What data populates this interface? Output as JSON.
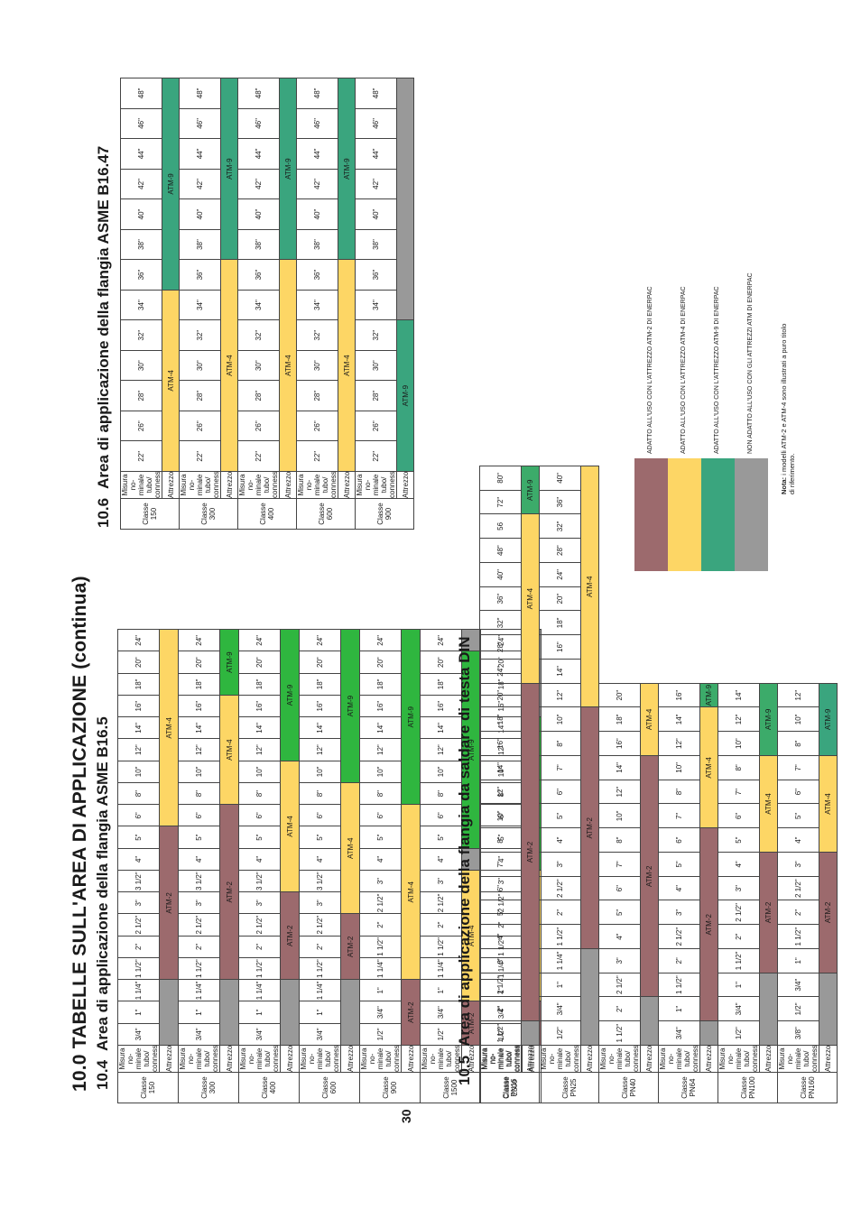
{
  "page": {
    "main_title": "10.0 TABELLE SULL'AREA DI APPLICAZIONE (continua)",
    "page_number": "30"
  },
  "colors": {
    "ATM-2": "#9c6a6d",
    "ATM-4": "#fdd665",
    "ATM-9": "#3cab6a",
    "none": "#999999"
  },
  "row_labels": {
    "class": "Classe",
    "size": "Misura no- minale tubo/ connessione",
    "tool": "Attrezzo"
  },
  "tables": [
    {
      "id": "asme-b16-5",
      "number": "10.4",
      "title": "Area di applicazione della flangia ASME B16.5",
      "classes": [
        {
          "name": "150",
          "sizes": [
            "3/4\"",
            "1\"",
            "1 1/4\"",
            "1 1/2\"",
            "2\"",
            "2 1/2\"",
            "3\"",
            "3 1/2\"",
            "4\"",
            "5\"",
            "6\"",
            "8\"",
            "10\"",
            "12\"",
            "14\"",
            "16\"",
            "18\"",
            "20\"",
            "24\""
          ],
          "tools": [
            {
              "label": "",
              "span": 3,
              "color": "grey"
            },
            {
              "label": "ATM-2",
              "span": 7,
              "color": "red"
            },
            {
              "label": "ATM-4",
              "span": 9,
              "color": "yellow"
            }
          ]
        },
        {
          "name": "300",
          "sizes": [
            "3/4\"",
            "1\"",
            "1 1/4\"",
            "1 1/2\"",
            "2\"",
            "2 1/2\"",
            "3\"",
            "3 1/2\"",
            "4\"",
            "5\"",
            "6\"",
            "8\"",
            "10\"",
            "12\"",
            "14\"",
            "16\"",
            "18\"",
            "20\"",
            "24\""
          ],
          "tools": [
            {
              "label": "",
              "span": 3,
              "color": "grey"
            },
            {
              "label": "ATM-2",
              "span": 8,
              "color": "red"
            },
            {
              "label": "ATM-4",
              "span": 5,
              "color": "yellow"
            },
            {
              "label": "ATM-9",
              "span": 3,
              "color": "bright"
            }
          ]
        },
        {
          "name": "400",
          "sizes": [
            "3/4\"",
            "1\"",
            "1 1/4\"",
            "1 1/2\"",
            "2\"",
            "2 1/2\"",
            "3\"",
            "3 1/2\"",
            "4\"",
            "5\"",
            "6\"",
            "8\"",
            "10\"",
            "12\"",
            "14\"",
            "16\"",
            "18\"",
            "20\"",
            "24\""
          ],
          "tools": [
            {
              "label": "",
              "span": 3,
              "color": "grey"
            },
            {
              "label": "ATM-2",
              "span": 4,
              "color": "red"
            },
            {
              "label": "ATM-4",
              "span": 6,
              "color": "yellow"
            },
            {
              "label": "ATM-9",
              "span": 6,
              "color": "bright"
            }
          ]
        },
        {
          "name": "600",
          "sizes": [
            "3/4\"",
            "1\"",
            "1 1/4\"",
            "1 1/2\"",
            "2\"",
            "2 1/2\"",
            "3\"",
            "3 1/2\"",
            "4\"",
            "5\"",
            "6\"",
            "8\"",
            "10\"",
            "12\"",
            "14\"",
            "16\"",
            "18\"",
            "20\"",
            "24\""
          ],
          "tools": [
            {
              "label": "",
              "span": 3,
              "color": "grey"
            },
            {
              "label": "ATM-2",
              "span": 3,
              "color": "red"
            },
            {
              "label": "ATM-4",
              "span": 6,
              "color": "yellow"
            },
            {
              "label": "ATM-9",
              "span": 7,
              "color": "bright"
            }
          ]
        },
        {
          "name": "900",
          "sizes": [
            "1/2\"",
            "3/4\"",
            "1\"",
            "1 1/4\"",
            "1 1/2\"",
            "2\"",
            "2 1/2\"",
            "3\"",
            "4\"",
            "5\"",
            "6\"",
            "8\"",
            "10\"",
            "12\"",
            "14\"",
            "16\"",
            "18\"",
            "20\"",
            "24\""
          ],
          "tools": [
            {
              "label": "ATM-2",
              "span": 3,
              "color": "red"
            },
            {
              "label": "ATM-4",
              "span": 8,
              "color": "yellow"
            },
            {
              "label": "ATM-9",
              "span": 8,
              "color": "bright"
            }
          ]
        },
        {
          "name": "1500",
          "sizes": [
            "1/2\"",
            "3/4\"",
            "1\"",
            "1 1/4\"",
            "1 1/2\"",
            "2\"",
            "2 1/2\"",
            "3\"",
            "4\"",
            "5\"",
            "6\"",
            "8\"",
            "10\"",
            "12\"",
            "14\"",
            "16\"",
            "18\"",
            "20\"",
            "24\""
          ],
          "tools": [
            {
              "label": "ATM-2",
              "span": 2,
              "color": "red"
            },
            {
              "label": "ATM-4",
              "span": 6,
              "color": "yellow"
            },
            {
              "label": "",
              "span": 1,
              "color": "grey"
            },
            {
              "label": "ATM-9",
              "span": 9,
              "color": "bright"
            },
            {
              "label": "",
              "span": 1,
              "color": "grey"
            }
          ]
        },
        {
          "name": "2500",
          "sizes": [
            "1/2\"",
            "3/4\"",
            "1\"",
            "1 1/4\"",
            "1 1/2\"",
            "2\"",
            "2 1/2\"",
            "3\"",
            "4\"",
            "5\"",
            "6\"",
            "8\"",
            "10\"",
            "12\"",
            "14\"",
            "16\"",
            "18\"",
            "20\"",
            "24\""
          ],
          "tools": [
            {
              "label": "ATM-2",
              "span": 2,
              "color": "red"
            },
            {
              "label": "ATM-4",
              "span": 6,
              "color": "yellow"
            },
            {
              "label": "ATM-9",
              "span": 7,
              "color": "bright"
            },
            {
              "label": "",
              "span": 4,
              "color": "grey"
            }
          ]
        }
      ]
    },
    {
      "id": "din",
      "number": "10.5",
      "title": "Area di applicazione della flangia da saldare di testa DIN",
      "classes": [
        {
          "name": "PN16",
          "sizes": [
            "1 1/2\"",
            "2\"",
            "2 1/2\"",
            "3\"",
            "4\"",
            "5\"",
            "6\"",
            "7\"",
            "8\"",
            "10\"",
            "12\"",
            "14\"",
            "16\"",
            "18\"",
            "20\"",
            "24\"",
            "28\"",
            "32\"",
            "36\"",
            "40\"",
            "48\"",
            "56",
            "72\"",
            "80\""
          ],
          "tools": [
            {
              "label": "",
              "span": 1,
              "color": "grey"
            },
            {
              "label": "ATM-2",
              "span": 14,
              "color": "red"
            },
            {
              "label": "ATM-4",
              "span": 7,
              "color": "yellow"
            },
            {
              "label": "ATM-9",
              "span": 2,
              "color": "green"
            }
          ]
        },
        {
          "name": "PN25",
          "sizes": [
            "1/2\"",
            "3/4\"",
            "1\"",
            "1 1/4\"",
            "1 1/2\"",
            "2\"",
            "2 1/2\"",
            "3\"",
            "4\"",
            "5\"",
            "6\"",
            "7\"",
            "8\"",
            "10\"",
            "12\"",
            "14\"",
            "16\"",
            "18\"",
            "20\"",
            "24\"",
            "28\"",
            "32\"",
            "36\"",
            "40\""
          ],
          "tools": [
            {
              "label": "",
              "span": 4,
              "color": "grey"
            },
            {
              "label": "ATM-2",
              "span": 10,
              "color": "red"
            },
            {
              "label": "ATM-4",
              "span": 10,
              "color": "yellow"
            }
          ]
        },
        {
          "name": "PN40",
          "sizes": [
            "1 1/2\"",
            "2\"",
            "2 1/2\"",
            "3\"",
            "4\"",
            "5\"",
            "6\"",
            "7\"",
            "8\"",
            "10\"",
            "12\"",
            "14\"",
            "16\"",
            "18\"",
            "20\""
          ],
          "tools": [
            {
              "label": "",
              "span": 2,
              "color": "grey"
            },
            {
              "label": "ATM-2",
              "span": 10,
              "color": "red"
            },
            {
              "label": "ATM-4",
              "span": 3,
              "color": "yellow"
            }
          ]
        },
        {
          "name": "PN64",
          "sizes": [
            "3/4\"",
            "1\"",
            "1 1/2\"",
            "2\"",
            "2 1/2\"",
            "3\"",
            "4\"",
            "5\"",
            "6\"",
            "7\"",
            "8\"",
            "10\"",
            "12\"",
            "14\"",
            "16\""
          ],
          "tools": [
            {
              "label": "",
              "span": 1,
              "color": "grey"
            },
            {
              "label": "ATM-2",
              "span": 8,
              "color": "red"
            },
            {
              "label": "ATM-4",
              "span": 5,
              "color": "yellow"
            },
            {
              "label": "ATM-9",
              "span": 1,
              "color": "green"
            }
          ]
        },
        {
          "name": "PN100",
          "sizes": [
            "1/2\"",
            "3/4\"",
            "1\"",
            "1 1/2\"",
            "2\"",
            "2 1/2\"",
            "3\"",
            "4\"",
            "5\"",
            "6\"",
            "7\"",
            "8\"",
            "10\"",
            "12\"",
            "14\""
          ],
          "tools": [
            {
              "label": "",
              "span": 3,
              "color": "grey"
            },
            {
              "label": "ATM-2",
              "span": 5,
              "color": "red"
            },
            {
              "label": "ATM-4",
              "span": 4,
              "color": "yellow"
            },
            {
              "label": "ATM-9",
              "span": 3,
              "color": "green"
            }
          ]
        },
        {
          "name": "PN160",
          "sizes": [
            "3/8\"",
            "1/2\"",
            "3/4\"",
            "1\"",
            "1 1/2\"",
            "2\"",
            "2 1/2\"",
            "3\"",
            "4\"",
            "5\"",
            "6\"",
            "7\"",
            "8\"",
            "10\"",
            "12\""
          ],
          "tools": [
            {
              "label": "",
              "span": 3,
              "color": "grey"
            },
            {
              "label": "ATM-2",
              "span": 5,
              "color": "red"
            },
            {
              "label": "ATM-4",
              "span": 4,
              "color": "yellow"
            },
            {
              "label": "ATM-9",
              "span": 3,
              "color": "teal"
            }
          ]
        }
      ]
    },
    {
      "id": "asme-b16-47",
      "number": "10.6",
      "title": "Area di applicazione della flangia ASME B16.47",
      "classes": [
        {
          "name": "150",
          "sizes": [
            "22\"",
            "26\"",
            "28\"",
            "30\"",
            "32\"",
            "34\"",
            "36\"",
            "38\"",
            "40\"",
            "42\"",
            "44\"",
            "46\"",
            "48\""
          ],
          "tools": [
            {
              "label": "ATM-4",
              "span": 6,
              "color": "yellow"
            },
            {
              "label": "ATM-9",
              "span": 7,
              "color": "teal"
            }
          ]
        },
        {
          "name": "300",
          "sizes": [
            "22\"",
            "26\"",
            "28\"",
            "30\"",
            "32\"",
            "34\"",
            "36\"",
            "38\"",
            "40\"",
            "42\"",
            "44\"",
            "46\"",
            "48\""
          ],
          "tools": [
            {
              "label": "ATM-4",
              "span": 7,
              "color": "yellow"
            },
            {
              "label": "ATM-9",
              "span": 6,
              "color": "teal"
            }
          ]
        },
        {
          "name": "400",
          "sizes": [
            "22\"",
            "26\"",
            "28\"",
            "30\"",
            "32\"",
            "34\"",
            "36\"",
            "38\"",
            "40\"",
            "42\"",
            "44\"",
            "46\"",
            "48\""
          ],
          "tools": [
            {
              "label": "ATM-4",
              "span": 7,
              "color": "yellow"
            },
            {
              "label": "ATM-9",
              "span": 6,
              "color": "teal"
            }
          ]
        },
        {
          "name": "600",
          "sizes": [
            "22\"",
            "26\"",
            "28\"",
            "30\"",
            "32\"",
            "34\"",
            "36\"",
            "38\"",
            "40\"",
            "42\"",
            "44\"",
            "46\"",
            "48\""
          ],
          "tools": [
            {
              "label": "ATM-4",
              "span": 7,
              "color": "yellow"
            },
            {
              "label": "ATM-9",
              "span": 6,
              "color": "teal"
            }
          ]
        },
        {
          "name": "900",
          "sizes": [
            "22\"",
            "26\"",
            "28\"",
            "30\"",
            "32\"",
            "34\"",
            "36\"",
            "38\"",
            "40\"",
            "42\"",
            "44\"",
            "46\"",
            "48\""
          ],
          "tools": [
            {
              "label": "ATM-9",
              "span": 5,
              "color": "teal"
            },
            {
              "label": "",
              "span": 8,
              "color": "grey"
            }
          ]
        }
      ]
    }
  ],
  "legend": [
    {
      "color": "red",
      "text": "ADATTO ALL'USO CON L'ATTREZZO ATM-2 DI ENERPAC"
    },
    {
      "color": "yellow",
      "text": "ADATTO ALL'USO CON L'ATTREZZO ATM-4 DI ENERPAC"
    },
    {
      "color": "teal",
      "text": "ADATTO ALL'USO CON L'ATTREZZO ATM-9 DI ENERPAC"
    },
    {
      "color": "grey",
      "text": "NON ADATTO ALL'USO CON GLI ATTREZZI ATM DI ENERPAC"
    }
  ],
  "note": {
    "label": "Nota:",
    "text_line1": "i modelli ATM-2 e ATM-4 sono illustrati a puro titolo",
    "text_line2": "di riferimento."
  }
}
